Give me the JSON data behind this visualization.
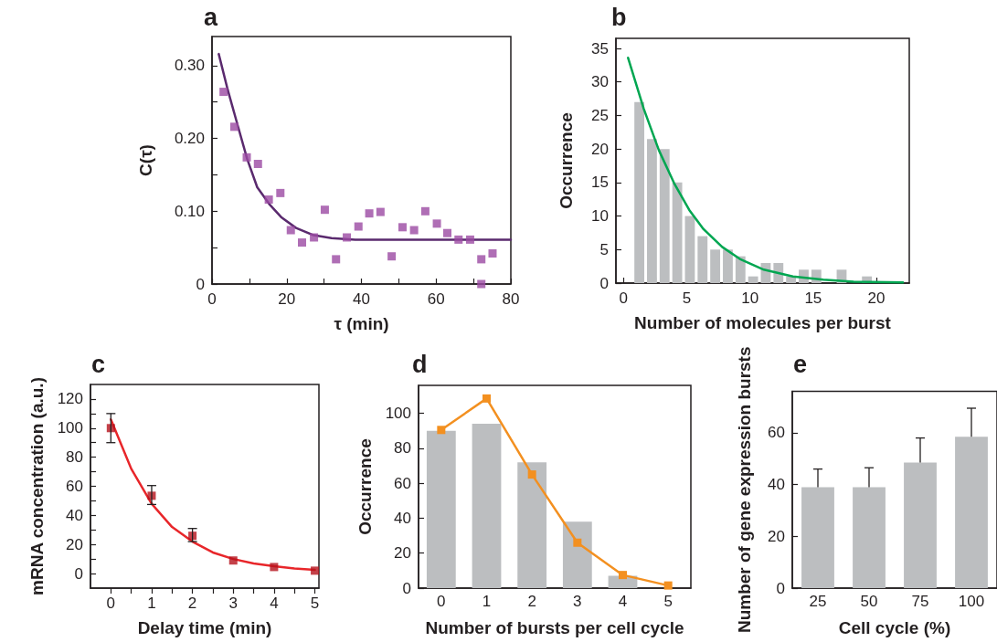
{
  "chart_data": [
    {
      "type": "scatter",
      "title": "a",
      "xlabel": "τ (min)",
      "ylabel": "C(τ)",
      "xlim": [
        0,
        80
      ],
      "xticks": [
        0,
        {
          "value": 10,
          "label": null
        },
        20,
        {
          "value": 30,
          "label": null
        },
        40,
        {
          "value": 50,
          "label": null
        },
        60,
        {
          "value": 70,
          "label": null
        },
        80
      ],
      "ylim": [
        0,
        0.34
      ],
      "yticks": [
        0,
        {
          "value": 0.05,
          "label": null
        },
        {
          "value": 0.1,
          "label": "0.10"
        },
        {
          "value": 0.15,
          "label": null
        },
        {
          "value": 0.2,
          "label": "0.20"
        },
        {
          "value": 0.25,
          "label": null
        },
        {
          "value": 0.3,
          "label": "0.30"
        }
      ],
      "series": [
        {
          "type": "line",
          "color": "#5a2a6e",
          "marker": "none",
          "x": [
            1.8,
            4.2,
            6.6,
            9.4,
            12.1,
            15.3,
            18.5,
            22.5,
            27.2,
            32,
            38.3,
            50,
            65,
            80
          ],
          "values": [
            0.316,
            0.267,
            0.223,
            0.172,
            0.133,
            0.11,
            0.092,
            0.077,
            0.067,
            0.063,
            0.061,
            0.061,
            0.061,
            0.061
          ]
        },
        {
          "type": "scatter",
          "color": "#9b4aa3",
          "marker": "square",
          "x": [
            3.1,
            6,
            9.3,
            12.3,
            15.2,
            18.3,
            21.1,
            24.1,
            27.3,
            30.2,
            33.2,
            36.1,
            39.2,
            42.1,
            45.1,
            48.1,
            51,
            54.1,
            57.1,
            60.2,
            63,
            66,
            69.1,
            72.1,
            72.1,
            75.1
          ],
          "values": [
            0.264,
            0.216,
            0.174,
            0.165,
            0.116,
            0.125,
            0.074,
            0.057,
            0.064,
            0.102,
            0.034,
            0.064,
            0.079,
            0.097,
            0.099,
            0.038,
            0.078,
            0.074,
            0.1,
            0.083,
            0.07,
            0.061,
            0.061,
            0.034,
            0,
            0.042
          ]
        }
      ]
    },
    {
      "type": "histogram",
      "title": "b",
      "xlabel": "Number of molecules per burst",
      "ylabel": "Occurrence",
      "xlim": [
        -0.6,
        22.6
      ],
      "xticks": [
        0,
        {
          "value": 2.5,
          "label": null
        },
        5,
        {
          "value": 7.5,
          "label": null
        },
        10,
        {
          "value": 12.5,
          "label": null
        },
        15,
        {
          "value": 17.5,
          "label": null
        },
        20
      ],
      "ylim": [
        0,
        36.5
      ],
      "yticks": [
        0,
        5,
        10,
        15,
        20,
        25,
        30,
        35
      ],
      "series": [
        {
          "type": "histogram",
          "color": "#bcbec0",
          "bins": [
            0.75,
            1.75,
            2.75,
            3.75,
            4.75,
            5.75,
            6.75,
            7.75,
            8.75,
            9.75,
            10.75,
            11.75,
            12.75,
            13.75,
            14.75,
            15.75,
            16.75,
            17.75,
            18.75,
            19.75
          ],
          "values": [
            27,
            21.5,
            20,
            15,
            10,
            7,
            5,
            5,
            4,
            1,
            3,
            3,
            1,
            2,
            2,
            0,
            2,
            0,
            1
          ]
        },
        {
          "type": "line",
          "color": "#00a651",
          "marker": "none",
          "x": [
            0.36,
            1.6,
            2.8,
            4,
            5.2,
            6.3,
            7.8,
            9.2,
            11.1,
            13.4,
            15.8,
            18.2,
            22.1
          ],
          "values": [
            33.6,
            26,
            19.8,
            14.9,
            10.9,
            8.1,
            5.4,
            3.6,
            2,
            1,
            0.5,
            0.2,
            0.1
          ]
        }
      ]
    },
    {
      "type": "scatter",
      "title": "c",
      "xlabel": "Delay time (min)",
      "ylabel": "mRNA concentration (a.u.)",
      "xlim": [
        -0.5,
        5.1
      ],
      "xticks": [
        0,
        {
          "value": 0.5,
          "label": null
        },
        1,
        {
          "value": 1.5,
          "label": null
        },
        2,
        {
          "value": 2.5,
          "label": null
        },
        3,
        {
          "value": 3.5,
          "label": null
        },
        4,
        {
          "value": 4.5,
          "label": null
        },
        5
      ],
      "ylim": [
        -10,
        130
      ],
      "yticks": [
        0,
        {
          "value": 10,
          "label": null
        },
        20,
        {
          "value": 30,
          "label": null
        },
        40,
        {
          "value": 50,
          "label": null
        },
        60,
        {
          "value": 70,
          "label": null
        },
        80,
        {
          "value": 90,
          "label": null
        },
        100,
        {
          "value": 110,
          "label": null
        },
        120
      ],
      "series": [
        {
          "type": "line",
          "color": "#e8262a",
          "marker": "none",
          "x": [
            0,
            0.5,
            1,
            1.5,
            2,
            2.5,
            3,
            3.5,
            4,
            4.5,
            5
          ],
          "values": [
            106,
            72,
            48,
            32,
            22,
            14.5,
            10,
            7,
            5,
            3.5,
            2.5
          ]
        },
        {
          "type": "scatter",
          "color": "#b5121b",
          "marker": "square",
          "x": [
            0,
            1,
            2,
            3,
            4,
            5
          ],
          "values": [
            100,
            53.5,
            26,
            9,
            4.5,
            2
          ],
          "errors": [
            [
              90,
              110
            ],
            [
              47.5,
              60.5
            ],
            [
              22,
              31
            ],
            null,
            null,
            null
          ]
        }
      ]
    },
    {
      "type": "bar",
      "title": "d",
      "xlabel": "Number of bursts per cell cycle",
      "ylabel": "Occurrence",
      "categories": [
        "0",
        "1",
        "2",
        "3",
        "4",
        "5"
      ],
      "ylim": [
        0,
        116
      ],
      "yticks": [
        0,
        20,
        40,
        60,
        80,
        100
      ],
      "series": [
        {
          "type": "bar",
          "color": "#bcbec0",
          "values": [
            90,
            94,
            72,
            38,
            7,
            0
          ]
        },
        {
          "type": "line",
          "color": "#f39020",
          "marker": "square",
          "values": [
            90.5,
            108.5,
            65,
            26,
            7.5,
            1.5
          ]
        }
      ]
    },
    {
      "type": "bar",
      "title": "e",
      "xlabel": "Cell cycle (%)",
      "ylabel": "Number of gene expression bursts",
      "categories": [
        "25",
        "50",
        "75",
        "100"
      ],
      "ylim": [
        0,
        76
      ],
      "yticks": [
        0,
        20,
        40,
        60
      ],
      "color": "#bcbec0",
      "values": [
        39,
        39,
        48.5,
        58.5
      ],
      "errors": [
        [
          39,
          46
        ],
        [
          39,
          46.5
        ],
        [
          48.5,
          58
        ],
        [
          58.5,
          69.5
        ]
      ]
    }
  ]
}
